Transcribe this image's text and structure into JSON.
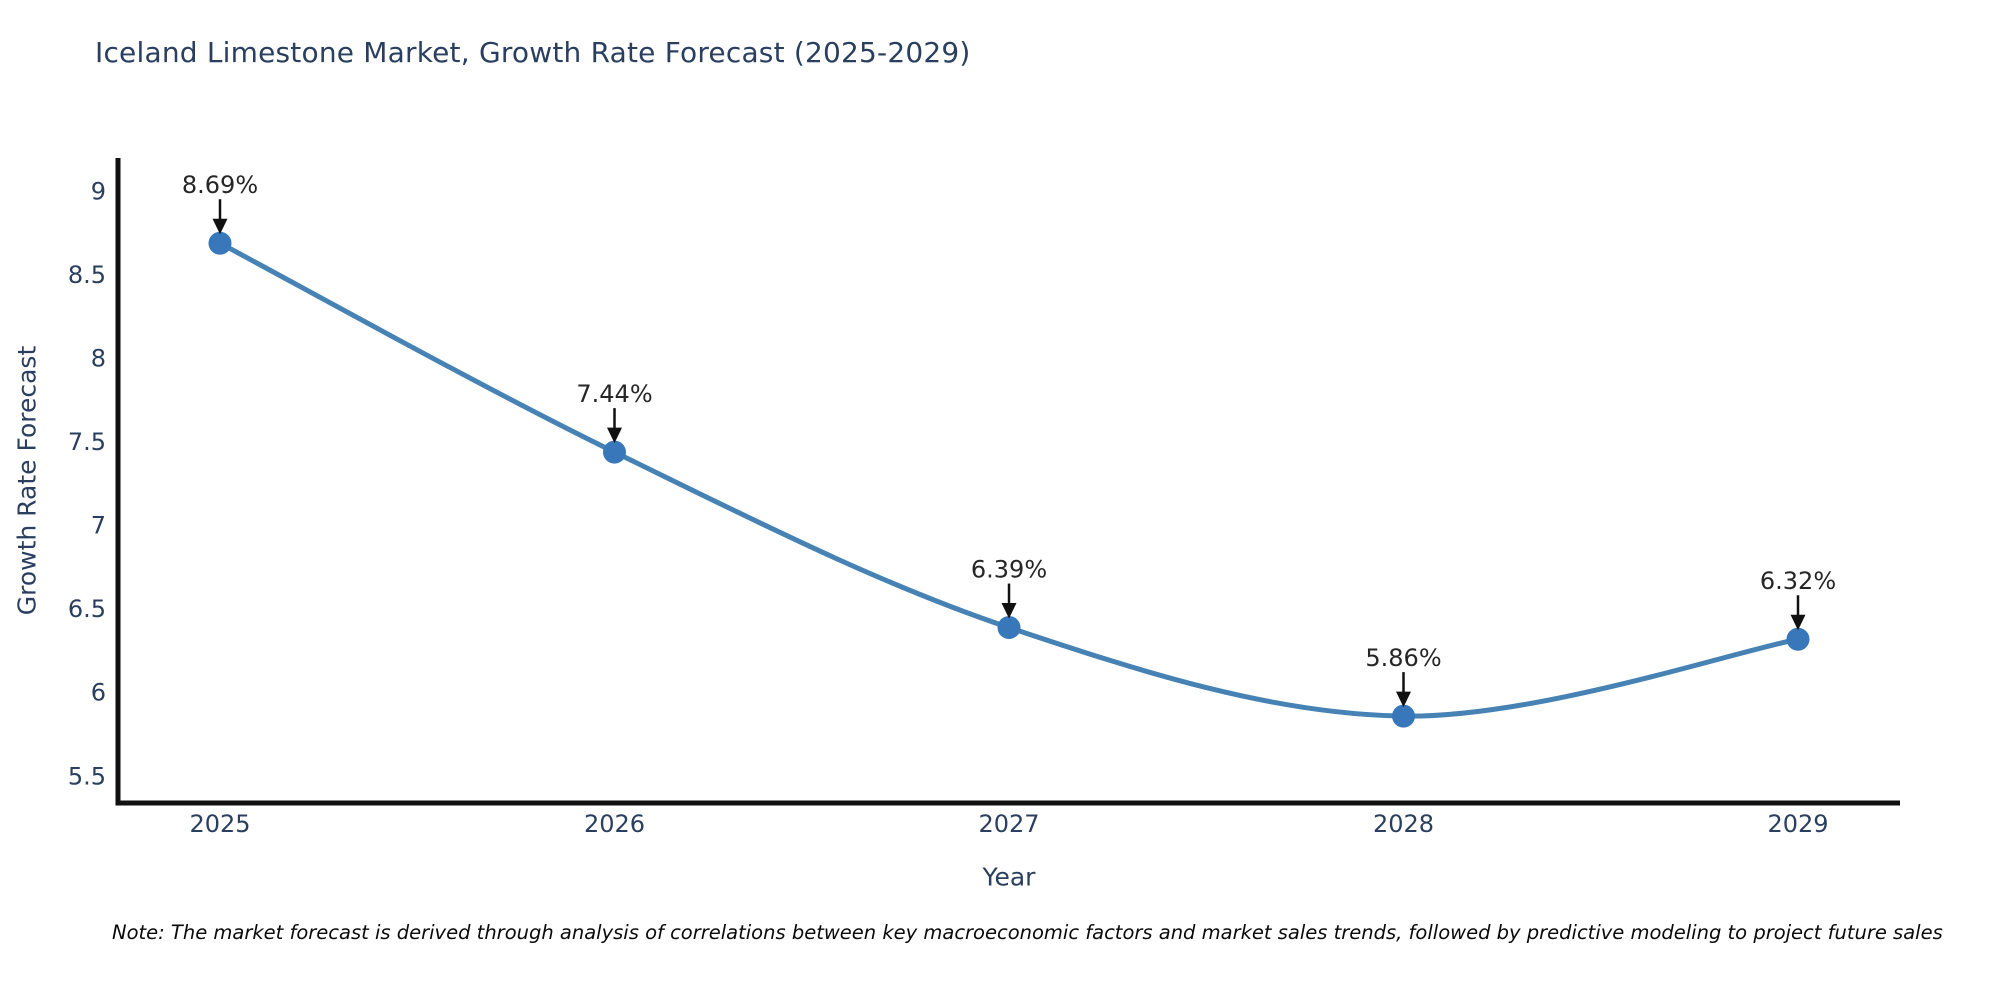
{
  "page": {
    "title": "Iceland Limestone Market, Growth Rate Forecast (2025-2029)",
    "note": "Note: The market forecast is derived through analysis of correlations between key macroeconomic factors and market sales trends, followed by predictive modeling to project future sales"
  },
  "chart_data": {
    "type": "line",
    "title": "Iceland Limestone Market, Growth Rate Forecast (2025-2029)",
    "x": [
      "2025",
      "2026",
      "2027",
      "2028",
      "2029"
    ],
    "series": [
      {
        "name": "Growth Rate Forecast",
        "values": [
          8.69,
          7.44,
          6.39,
          5.86,
          6.32
        ]
      }
    ],
    "point_labels": [
      "8.69%",
      "7.44%",
      "6.39%",
      "5.86%",
      "6.32%"
    ],
    "xlabel": "Year",
    "ylabel": "Growth Rate Forecast",
    "yticks": [
      5.5,
      6,
      6.5,
      7,
      7.5,
      8,
      8.5,
      9
    ],
    "ylim": [
      5.34,
      9.2
    ],
    "grid": false,
    "line_shape": "spline",
    "legend": "none",
    "colors": {
      "line": "#4682b4",
      "marker": "#3878ba",
      "axis": "#111111",
      "text": "#2a3f5f",
      "annotation": "#262626",
      "arrow": "#111111"
    }
  }
}
